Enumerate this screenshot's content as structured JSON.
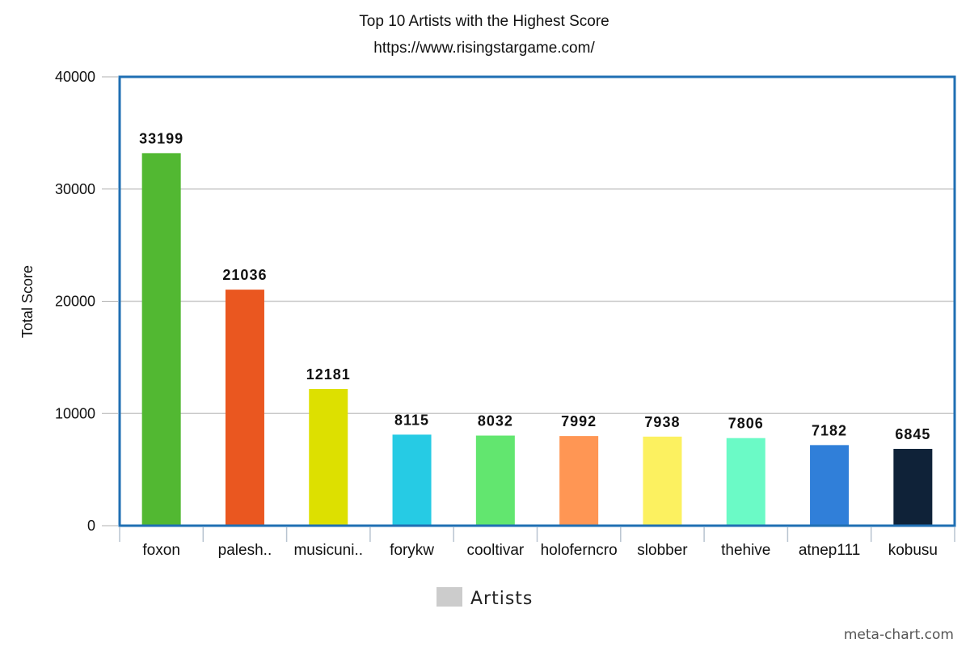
{
  "chart_data": {
    "type": "bar",
    "title": "Top 10 Artists with the Highest Score",
    "subtitle": "https://www.risingstargame.com/",
    "ylabel": "Total Score",
    "xlabel": "",
    "ylim": [
      0,
      40000
    ],
    "yticks": [
      0,
      10000,
      20000,
      30000,
      40000
    ],
    "grid": true,
    "legend_position": "bottom",
    "legend_label": "Artists",
    "categories": [
      "foxon",
      "palesh..",
      "musicuni..",
      "forykw",
      "cooltivar",
      "holoferncro",
      "slobber",
      "thehive",
      "atnep111",
      "kobusu"
    ],
    "values": [
      33199,
      21036,
      12181,
      8115,
      8032,
      7992,
      7938,
      7806,
      7182,
      6845
    ],
    "colors": [
      "#52b832",
      "#ea5720",
      "#dde000",
      "#26cbe4",
      "#62e66f",
      "#ff9654",
      "#fcf160",
      "#6bfac6",
      "#307fd9",
      "#0f2238"
    ]
  },
  "watermark": "meta-chart.com",
  "colors": {
    "frame": "#1f6fb3",
    "grid": "#c8c8c8",
    "legend_swatch": "#cccccc"
  }
}
